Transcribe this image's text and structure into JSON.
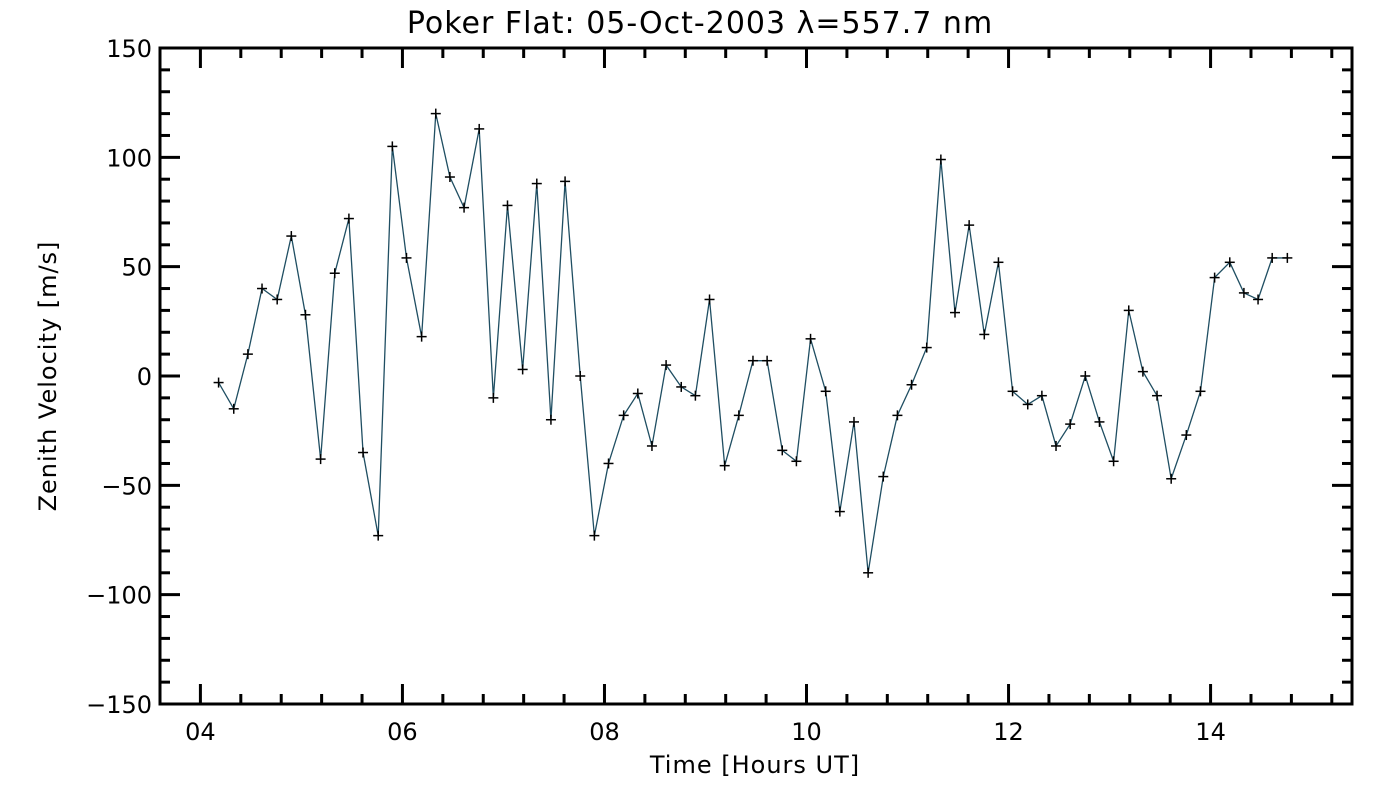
{
  "chart_data": {
    "type": "line",
    "title": "Poker Flat: 05-Oct-2003 λ=557.7 nm",
    "xlabel": "Time [Hours UT]",
    "ylabel": "Zenith Velocity [m/s]",
    "xlim": [
      3.6,
      15.4
    ],
    "ylim": [
      -150,
      150
    ],
    "x_ticks": [
      4,
      6,
      8,
      10,
      12,
      14
    ],
    "x_tick_labels": [
      "04",
      "06",
      "08",
      "10",
      "12",
      "14"
    ],
    "y_ticks": [
      -150,
      -100,
      -50,
      0,
      50,
      100,
      150
    ],
    "y_tick_labels": [
      "−150",
      "−100",
      "−50",
      "0",
      "50",
      "100",
      "150"
    ],
    "x_minor_step": 0.4,
    "y_minor_step": 10,
    "grid": false,
    "marker": "+",
    "colors": {
      "line": "#1f4e62",
      "marker": "#000000",
      "axes": "#000000"
    },
    "series": [
      {
        "name": "Zenith Velocity",
        "x": [
          4.18,
          4.33,
          4.47,
          4.61,
          4.76,
          4.9,
          5.04,
          5.19,
          5.33,
          5.47,
          5.61,
          5.76,
          5.9,
          6.04,
          6.19,
          6.33,
          6.47,
          6.61,
          6.76,
          6.9,
          7.04,
          7.19,
          7.33,
          7.47,
          7.61,
          7.76,
          7.9,
          8.04,
          8.19,
          8.33,
          8.47,
          8.61,
          8.76,
          8.9,
          9.04,
          9.19,
          9.33,
          9.47,
          9.61,
          9.76,
          9.9,
          10.04,
          10.19,
          10.33,
          10.47,
          10.61,
          10.76,
          10.9,
          11.04,
          11.19,
          11.33,
          11.47,
          11.61,
          11.76,
          11.9,
          12.04,
          12.19,
          12.33,
          12.47,
          12.61,
          12.76,
          12.9,
          13.04,
          13.19,
          13.33,
          13.47,
          13.61,
          13.76,
          13.9,
          14.04,
          14.19,
          14.33,
          14.47,
          14.61,
          14.76
        ],
        "values": [
          -3,
          -15,
          10,
          40,
          35,
          64,
          28,
          -38,
          47,
          72,
          -35,
          -73,
          105,
          54,
          18,
          120,
          91,
          77,
          113,
          -10,
          78,
          3,
          88,
          -20,
          89,
          0,
          -73,
          -40,
          -18,
          -8,
          -32,
          5,
          -5,
          -9,
          35,
          -41,
          -18,
          7,
          7,
          -34,
          -39,
          17,
          -7,
          -62,
          -21,
          -90,
          -46,
          -18,
          -4,
          13,
          99,
          29,
          69,
          19,
          52,
          -7,
          -13,
          -9,
          -32,
          -22,
          0,
          -21,
          -39,
          30,
          2,
          -9,
          -47,
          -27,
          -7,
          45,
          52,
          38,
          35,
          54,
          54
        ]
      }
    ]
  }
}
